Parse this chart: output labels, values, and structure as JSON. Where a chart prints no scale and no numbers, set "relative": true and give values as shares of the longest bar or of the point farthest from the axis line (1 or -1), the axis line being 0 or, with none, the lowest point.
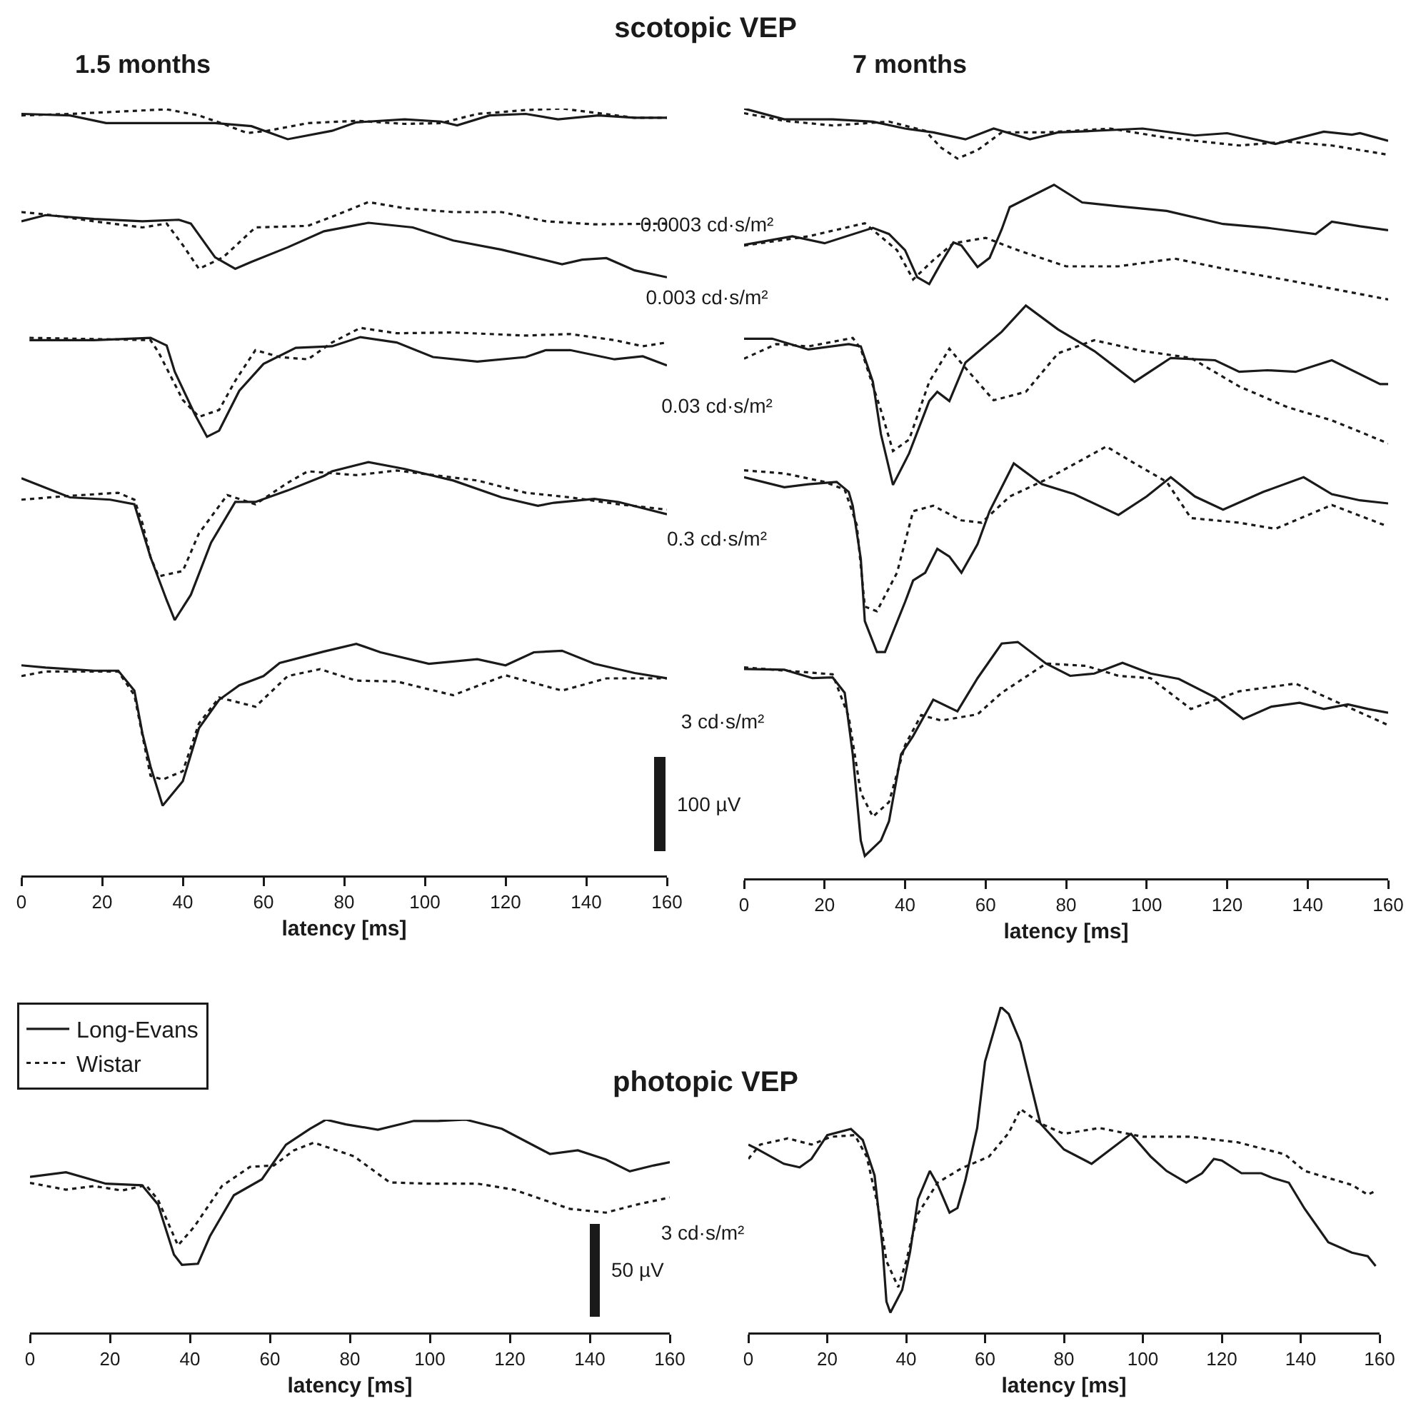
{
  "chart_data": [
    {
      "type": "line",
      "title": "1.5 months",
      "subtitle": "scotopic VEP",
      "xlabel": "latency [ms]",
      "relative": true,
      "grid": false,
      "legend": false,
      "tick_labels": "x",
      "xlim": [
        0,
        160
      ],
      "xticks": [
        0,
        20,
        40,
        60,
        80,
        100,
        120,
        140,
        160
      ],
      "annotations": [
        "0.0003 cd·s/m²",
        "0.003 cd·s/m²",
        "0.03 cd·s/m²",
        "0.3 cd·s/m²",
        "3 cd·s/m²",
        "100 µV"
      ],
      "series": [
        {
          "color": "#1a1a1a",
          "line_style": "solid",
          "x": [
            0,
            12,
            21,
            48,
            57,
            66,
            77,
            83,
            95,
            104,
            108,
            116,
            125,
            133,
            143,
            152,
            160
          ],
          "values": [
            0.993,
            0.991,
            0.981,
            0.981,
            0.977,
            0.96,
            0.971,
            0.982,
            0.986,
            0.983,
            0.978,
            0.991,
            0.993,
            0.986,
            0.991,
            0.988,
            0.988
          ]
        },
        {
          "color": "#1a1a1a",
          "line_style": "dotted",
          "x": [
            0,
            12,
            24,
            36,
            44,
            50,
            56,
            61,
            71,
            83,
            95,
            104,
            113,
            125,
            134,
            143,
            152,
            160
          ],
          "values": [
            0.991,
            0.993,
            0.996,
            0.999,
            0.991,
            0.98,
            0.968,
            0.971,
            0.981,
            0.984,
            0.98,
            0.981,
            0.993,
            0.998,
            1.0,
            0.994,
            0.988,
            0.988
          ]
        },
        {
          "color": "#1a1a1a",
          "line_style": "solid",
          "x": [
            0,
            6,
            18,
            30,
            39,
            42,
            48,
            53,
            57,
            66,
            75,
            86,
            97,
            107,
            119,
            134,
            139,
            145,
            152,
            160
          ],
          "values": [
            0.853,
            0.861,
            0.856,
            0.853,
            0.855,
            0.85,
            0.806,
            0.791,
            0.8,
            0.819,
            0.84,
            0.851,
            0.845,
            0.828,
            0.816,
            0.797,
            0.803,
            0.805,
            0.789,
            0.78
          ]
        },
        {
          "color": "#1a1a1a",
          "line_style": "dotted",
          "x": [
            0,
            6,
            18,
            30,
            36,
            40,
            44,
            50,
            58,
            71,
            77,
            86,
            95,
            107,
            119,
            130,
            142,
            160
          ],
          "values": [
            0.865,
            0.862,
            0.853,
            0.845,
            0.85,
            0.822,
            0.791,
            0.806,
            0.845,
            0.847,
            0.859,
            0.878,
            0.87,
            0.865,
            0.865,
            0.853,
            0.849,
            0.85
          ]
        },
        {
          "color": "#1a1a1a",
          "line_style": "solid",
          "x": [
            2,
            18,
            32,
            36,
            38,
            43,
            46,
            49,
            54,
            60,
            68,
            77,
            84,
            93,
            102,
            113,
            125,
            130,
            136,
            147,
            154,
            160
          ],
          "values": [
            0.698,
            0.698,
            0.701,
            0.691,
            0.657,
            0.601,
            0.572,
            0.58,
            0.632,
            0.667,
            0.688,
            0.69,
            0.702,
            0.695,
            0.676,
            0.67,
            0.676,
            0.685,
            0.685,
            0.673,
            0.677,
            0.665
          ]
        },
        {
          "color": "#1a1a1a",
          "line_style": "dotted",
          "x": [
            2,
            32,
            34,
            40,
            44,
            49,
            53,
            58,
            64,
            71,
            77,
            84,
            93,
            107,
            125,
            136,
            147,
            154,
            160
          ],
          "values": [
            0.701,
            0.698,
            0.682,
            0.62,
            0.598,
            0.607,
            0.645,
            0.685,
            0.676,
            0.673,
            0.695,
            0.714,
            0.707,
            0.708,
            0.704,
            0.706,
            0.698,
            0.69,
            0.695
          ]
        },
        {
          "color": "#1a1a1a",
          "line_style": "solid",
          "x": [
            0,
            12,
            22,
            28,
            32,
            36,
            38,
            42,
            47,
            53,
            58,
            66,
            75,
            77,
            86,
            95,
            107,
            119,
            128,
            132,
            142,
            148,
            160
          ],
          "values": [
            0.518,
            0.493,
            0.49,
            0.484,
            0.415,
            0.359,
            0.333,
            0.366,
            0.434,
            0.487,
            0.487,
            0.502,
            0.521,
            0.527,
            0.539,
            0.53,
            0.515,
            0.493,
            0.482,
            0.486,
            0.491,
            0.487,
            0.471
          ]
        },
        {
          "color": "#1a1a1a",
          "line_style": "dotted",
          "x": [
            0,
            12,
            24,
            28,
            30,
            32,
            34,
            40,
            44,
            51,
            58,
            66,
            71,
            83,
            93,
            113,
            125,
            136,
            148,
            160
          ],
          "values": [
            0.49,
            0.495,
            0.499,
            0.49,
            0.459,
            0.415,
            0.39,
            0.397,
            0.446,
            0.496,
            0.484,
            0.512,
            0.527,
            0.522,
            0.528,
            0.515,
            0.499,
            0.493,
            0.484,
            0.477
          ]
        },
        {
          "color": "#1a1a1a",
          "line_style": "solid",
          "x": [
            0,
            6,
            18,
            24,
            28,
            30,
            32,
            35,
            40,
            44,
            49,
            54,
            60,
            64,
            75,
            83,
            89,
            101,
            113,
            120,
            127,
            134,
            142,
            152,
            160
          ],
          "values": [
            0.274,
            0.271,
            0.267,
            0.267,
            0.241,
            0.185,
            0.142,
            0.091,
            0.123,
            0.192,
            0.229,
            0.248,
            0.26,
            0.277,
            0.292,
            0.302,
            0.291,
            0.276,
            0.282,
            0.274,
            0.291,
            0.293,
            0.276,
            0.264,
            0.257
          ]
        },
        {
          "color": "#1a1a1a",
          "line_style": "dotted",
          "x": [
            0,
            6,
            24,
            28,
            32,
            35,
            40,
            44,
            49,
            58,
            66,
            74,
            83,
            93,
            107,
            120,
            134,
            145,
            160
          ],
          "values": [
            0.26,
            0.266,
            0.266,
            0.235,
            0.13,
            0.125,
            0.136,
            0.198,
            0.232,
            0.22,
            0.26,
            0.269,
            0.254,
            0.253,
            0.235,
            0.261,
            0.241,
            0.257,
            0.257
          ]
        }
      ]
    },
    {
      "type": "line",
      "title": "7 months",
      "xlabel": "latency [ms]",
      "relative": true,
      "grid": false,
      "legend": false,
      "tick_labels": "x",
      "xlim": [
        0,
        160
      ],
      "xticks": [
        0,
        20,
        40,
        60,
        80,
        100,
        120,
        140,
        160
      ],
      "series": [
        {
          "color": "#1a1a1a",
          "line_style": "solid",
          "x": [
            0,
            10,
            22,
            32,
            40,
            47,
            55,
            62,
            71,
            78,
            87,
            99,
            112,
            120,
            132,
            144,
            151,
            153,
            160
          ],
          "values": [
            1.0,
            0.986,
            0.986,
            0.983,
            0.974,
            0.969,
            0.96,
            0.974,
            0.96,
            0.969,
            0.971,
            0.974,
            0.965,
            0.968,
            0.954,
            0.97,
            0.966,
            0.968,
            0.958
          ]
        },
        {
          "color": "#1a1a1a",
          "line_style": "dotted",
          "x": [
            0,
            10,
            22,
            36,
            45,
            49,
            53,
            58,
            64,
            75,
            91,
            105,
            123,
            135,
            146,
            160
          ],
          "values": [
            0.994,
            0.984,
            0.978,
            0.983,
            0.971,
            0.949,
            0.935,
            0.946,
            0.969,
            0.969,
            0.974,
            0.962,
            0.952,
            0.957,
            0.952,
            0.94
          ]
        },
        {
          "color": "#1a1a1a",
          "line_style": "solid",
          "x": [
            0,
            12,
            20,
            32,
            36,
            40,
            43,
            46,
            49,
            52,
            54,
            58,
            61,
            64,
            66,
            77,
            84,
            93,
            105,
            119,
            130,
            142,
            146,
            153,
            160
          ],
          "values": [
            0.823,
            0.834,
            0.825,
            0.845,
            0.837,
            0.816,
            0.781,
            0.772,
            0.8,
            0.826,
            0.822,
            0.794,
            0.806,
            0.843,
            0.872,
            0.901,
            0.878,
            0.873,
            0.867,
            0.85,
            0.845,
            0.837,
            0.853,
            0.847,
            0.842
          ]
        },
        {
          "color": "#1a1a1a",
          "line_style": "dotted",
          "x": [
            0,
            16,
            30,
            38,
            42,
            47,
            52,
            60,
            68,
            80,
            93,
            107,
            120,
            135,
            160
          ],
          "values": [
            0.822,
            0.834,
            0.851,
            0.816,
            0.778,
            0.803,
            0.825,
            0.832,
            0.816,
            0.795,
            0.795,
            0.805,
            0.791,
            0.777,
            0.752
          ]
        },
        {
          "color": "#1a1a1a",
          "line_style": "solid",
          "x": [
            0,
            7,
            16,
            26,
            29,
            32,
            34,
            37,
            41,
            46,
            48,
            51,
            55,
            64,
            70,
            78,
            87,
            97,
            106,
            117,
            123,
            130,
            137,
            146,
            158,
            160
          ],
          "values": [
            0.701,
            0.701,
            0.687,
            0.694,
            0.691,
            0.645,
            0.577,
            0.511,
            0.552,
            0.62,
            0.632,
            0.62,
            0.67,
            0.71,
            0.744,
            0.713,
            0.685,
            0.645,
            0.676,
            0.673,
            0.658,
            0.66,
            0.658,
            0.673,
            0.642,
            0.642
          ]
        },
        {
          "color": "#1a1a1a",
          "line_style": "dotted",
          "x": [
            0,
            8,
            16,
            27,
            29,
            34,
            37,
            41,
            46,
            51,
            55,
            62,
            70,
            78,
            87,
            99,
            111,
            123,
            135,
            146,
            160
          ],
          "values": [
            0.675,
            0.694,
            0.691,
            0.702,
            0.688,
            0.608,
            0.555,
            0.57,
            0.645,
            0.688,
            0.663,
            0.621,
            0.632,
            0.682,
            0.699,
            0.685,
            0.676,
            0.639,
            0.612,
            0.595,
            0.565
          ]
        },
        {
          "color": "#1a1a1a",
          "line_style": "solid",
          "x": [
            0,
            10,
            16,
            23,
            26,
            27,
            29,
            30,
            33,
            35,
            40,
            42,
            45,
            48,
            51,
            54,
            58,
            61,
            67,
            74,
            82,
            93,
            100,
            106,
            112,
            119,
            129,
            139,
            146,
            153,
            160
          ],
          "values": [
            0.521,
            0.508,
            0.512,
            0.515,
            0.502,
            0.484,
            0.415,
            0.334,
            0.294,
            0.294,
            0.359,
            0.387,
            0.397,
            0.428,
            0.418,
            0.397,
            0.434,
            0.477,
            0.539,
            0.512,
            0.499,
            0.472,
            0.496,
            0.521,
            0.496,
            0.479,
            0.502,
            0.521,
            0.499,
            0.491,
            0.487
          ]
        },
        {
          "color": "#1a1a1a",
          "line_style": "dotted",
          "x": [
            0,
            10,
            20,
            25,
            28,
            30,
            33,
            38,
            42,
            47,
            54,
            59,
            66,
            75,
            90,
            97,
            105,
            111,
            123,
            132,
            146,
            159
          ],
          "values": [
            0.53,
            0.526,
            0.515,
            0.505,
            0.459,
            0.353,
            0.347,
            0.397,
            0.477,
            0.484,
            0.465,
            0.462,
            0.496,
            0.518,
            0.561,
            0.539,
            0.515,
            0.468,
            0.462,
            0.454,
            0.485,
            0.459
          ]
        },
        {
          "color": "#1a1a1a",
          "line_style": "solid",
          "x": [
            0,
            10,
            17,
            22,
            25,
            27,
            29,
            30,
            34,
            36,
            39,
            42,
            47,
            53,
            58,
            64,
            68,
            75,
            81,
            87,
            94,
            101,
            108,
            117,
            124,
            131,
            138,
            144,
            150,
            155,
            160
          ],
          "values": [
            0.272,
            0.271,
            0.26,
            0.261,
            0.241,
            0.161,
            0.049,
            0.029,
            0.049,
            0.074,
            0.161,
            0.185,
            0.232,
            0.217,
            0.26,
            0.305,
            0.307,
            0.279,
            0.263,
            0.266,
            0.28,
            0.266,
            0.259,
            0.235,
            0.207,
            0.223,
            0.228,
            0.22,
            0.226,
            0.22,
            0.215
          ]
        },
        {
          "color": "#1a1a1a",
          "line_style": "dotted",
          "x": [
            0,
            22,
            26,
            29,
            32,
            36,
            40,
            44,
            49,
            58,
            64,
            75,
            85,
            93,
            101,
            111,
            123,
            137,
            146,
            160
          ],
          "values": [
            0.274,
            0.265,
            0.21,
            0.111,
            0.08,
            0.099,
            0.173,
            0.212,
            0.205,
            0.213,
            0.241,
            0.279,
            0.276,
            0.263,
            0.26,
            0.22,
            0.243,
            0.253,
            0.232,
            0.199
          ]
        }
      ]
    },
    {
      "type": "line",
      "title": "photopic VEP",
      "xlabel": "latency [ms]",
      "relative": true,
      "grid": false,
      "legend": "top left",
      "tick_labels": "x",
      "xlim": [
        0,
        160
      ],
      "xticks": [
        0,
        20,
        40,
        60,
        80,
        100,
        120,
        140,
        160
      ],
      "annotations": [
        "3 cd·s/m²",
        "50 µV"
      ],
      "series": [
        {
          "name": "Long-Evans",
          "color": "#1a1a1a",
          "line_style": "solid",
          "x": [
            0,
            9,
            19,
            28,
            32,
            36,
            38,
            42,
            45,
            51,
            58,
            64,
            70,
            74,
            79,
            87,
            96,
            102,
            109,
            118,
            130,
            137,
            144,
            150,
            156,
            160
          ],
          "values": [
            0.731,
            0.753,
            0.699,
            0.692,
            0.602,
            0.366,
            0.318,
            0.323,
            0.452,
            0.645,
            0.72,
            0.882,
            0.957,
            1.0,
            0.978,
            0.953,
            0.994,
            0.994,
            1.0,
            0.957,
            0.839,
            0.856,
            0.813,
            0.757,
            0.785,
            0.8
          ]
        },
        {
          "name": "Wistar",
          "color": "#1a1a1a",
          "line_style": "dotted",
          "x": [
            0,
            9,
            16,
            23,
            29,
            32,
            37,
            41,
            48,
            55,
            61,
            66,
            71,
            81,
            90,
            100,
            112,
            121,
            135,
            144,
            152,
            160
          ],
          "values": [
            0.703,
            0.671,
            0.688,
            0.667,
            0.692,
            0.624,
            0.409,
            0.495,
            0.688,
            0.778,
            0.785,
            0.856,
            0.892,
            0.828,
            0.705,
            0.699,
            0.699,
            0.671,
            0.581,
            0.563,
            0.602,
            0.634
          ]
        }
      ]
    },
    {
      "type": "line",
      "xlabel": "latency [ms]",
      "relative": true,
      "grid": false,
      "legend": false,
      "tick_labels": "x",
      "xlim": [
        0,
        160
      ],
      "xticks": [
        0,
        20,
        40,
        60,
        80,
        100,
        120,
        140,
        160
      ],
      "series": [
        {
          "color": "#1a1a1a",
          "line_style": "solid",
          "x": [
            0,
            2,
            9,
            13,
            16,
            20,
            26,
            29,
            32,
            34,
            35,
            36,
            39,
            41,
            43,
            46,
            48,
            51,
            53,
            55,
            58,
            60,
            64,
            66,
            69,
            74,
            80,
            87,
            97,
            102,
            106,
            111,
            115,
            118,
            120,
            125,
            130,
            133,
            137,
            141,
            147,
            153,
            157,
            159
          ],
          "values": [
            0.577,
            0.565,
            0.518,
            0.507,
            0.533,
            0.606,
            0.625,
            0.591,
            0.482,
            0.263,
            0.095,
            0.061,
            0.131,
            0.248,
            0.409,
            0.496,
            0.453,
            0.368,
            0.382,
            0.467,
            0.628,
            0.832,
            1.0,
            0.978,
            0.891,
            0.642,
            0.562,
            0.518,
            0.61,
            0.54,
            0.496,
            0.46,
            0.489,
            0.533,
            0.528,
            0.489,
            0.489,
            0.474,
            0.46,
            0.38,
            0.277,
            0.245,
            0.234,
            0.204
          ]
        },
        {
          "color": "#1a1a1a",
          "line_style": "dotted",
          "x": [
            0,
            3,
            10,
            16,
            21,
            27,
            30,
            33,
            35,
            38,
            40,
            43,
            48,
            54,
            61,
            66,
            69,
            74,
            80,
            89,
            100,
            112,
            124,
            136,
            141,
            153,
            157,
            159
          ],
          "values": [
            0.533,
            0.577,
            0.596,
            0.577,
            0.601,
            0.606,
            0.54,
            0.38,
            0.219,
            0.139,
            0.219,
            0.365,
            0.46,
            0.504,
            0.54,
            0.613,
            0.686,
            0.642,
            0.61,
            0.628,
            0.601,
            0.601,
            0.584,
            0.547,
            0.496,
            0.453,
            0.423,
            0.435
          ]
        }
      ]
    }
  ]
}
